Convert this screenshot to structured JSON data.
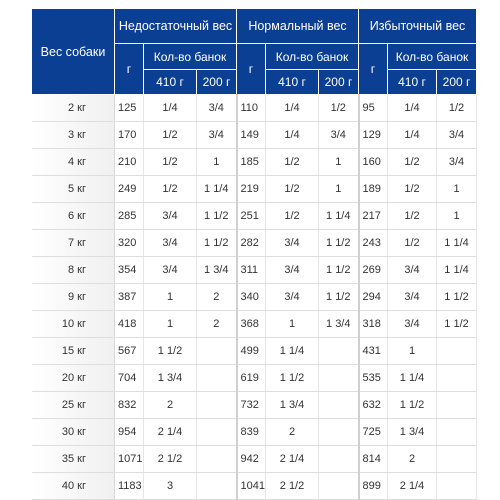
{
  "table": {
    "headers": {
      "dog_weight": "Вес собаки",
      "groups": [
        "Недостаточный вес",
        "Нормальный вес",
        "Избыточный вес"
      ],
      "grams": "г",
      "cans": "Кол-во банок",
      "can_410": "410 г",
      "can_200": "200 г"
    },
    "rows": [
      {
        "w": "2 кг",
        "cells": [
          "125",
          "1/4",
          "3/4",
          "110",
          "1/4",
          "1/2",
          "95",
          "1/4",
          "1/2"
        ]
      },
      {
        "w": "3 кг",
        "cells": [
          "170",
          "1/2",
          "3/4",
          "149",
          "1/4",
          "3/4",
          "129",
          "1/4",
          "3/4"
        ]
      },
      {
        "w": "4 кг",
        "cells": [
          "210",
          "1/2",
          "1",
          "185",
          "1/2",
          "1",
          "160",
          "1/2",
          "3/4"
        ]
      },
      {
        "w": "5 кг",
        "cells": [
          "249",
          "1/2",
          "1 1/4",
          "219",
          "1/2",
          "1",
          "189",
          "1/2",
          "1"
        ]
      },
      {
        "w": "6 кг",
        "cells": [
          "285",
          "3/4",
          "1 1/2",
          "251",
          "1/2",
          "1 1/4",
          "217",
          "1/2",
          "1"
        ]
      },
      {
        "w": "7 кг",
        "cells": [
          "320",
          "3/4",
          "1 1/2",
          "282",
          "3/4",
          "1 1/2",
          "243",
          "1/2",
          "1 1/4"
        ]
      },
      {
        "w": "8 кг",
        "cells": [
          "354",
          "3/4",
          "1 3/4",
          "311",
          "3/4",
          "1 1/2",
          "269",
          "3/4",
          "1 1/4"
        ]
      },
      {
        "w": "9 кг",
        "cells": [
          "387",
          "1",
          "2",
          "340",
          "3/4",
          "1 1/2",
          "294",
          "3/4",
          "1 1/2"
        ]
      },
      {
        "w": "10 кг",
        "cells": [
          "418",
          "1",
          "2",
          "368",
          "1",
          "1 3/4",
          "318",
          "3/4",
          "1 1/2"
        ]
      },
      {
        "w": "15 кг",
        "cells": [
          "567",
          "1 1/2",
          "",
          "499",
          "1 1/4",
          "",
          "431",
          "1",
          ""
        ]
      },
      {
        "w": "20 кг",
        "cells": [
          "704",
          "1 3/4",
          "",
          "619",
          "1 1/2",
          "",
          "535",
          "1 1/4",
          ""
        ]
      },
      {
        "w": "25 кг",
        "cells": [
          "832",
          "2",
          "",
          "732",
          "1 3/4",
          "",
          "632",
          "1 1/2",
          ""
        ]
      },
      {
        "w": "30 кг",
        "cells": [
          "954",
          "2 1/4",
          "",
          "839",
          "2",
          "",
          "725",
          "1 3/4",
          ""
        ]
      },
      {
        "w": "35 кг",
        "cells": [
          "1071",
          "2 1/2",
          "",
          "942",
          "2 1/4",
          "",
          "814",
          "2",
          ""
        ]
      },
      {
        "w": "40 кг",
        "cells": [
          "1183",
          "3",
          "",
          "1041",
          "2 1/2",
          "",
          "899",
          "2 1/4",
          ""
        ]
      }
    ]
  }
}
